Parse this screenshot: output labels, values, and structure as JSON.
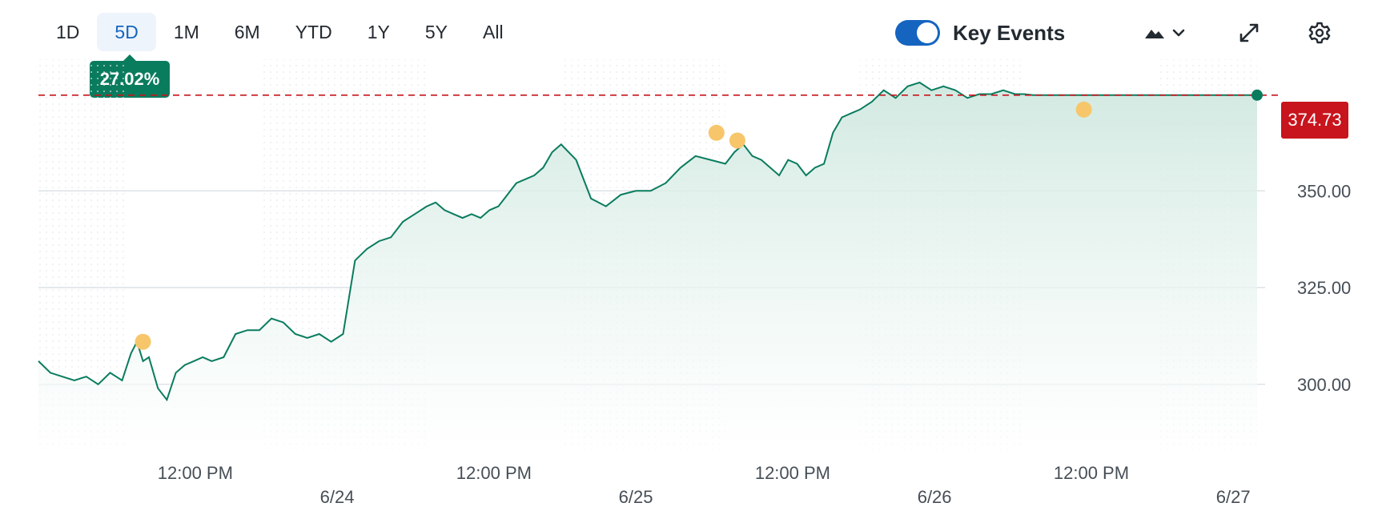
{
  "toolbar": {
    "ranges": [
      "1D",
      "5D",
      "1M",
      "6M",
      "YTD",
      "1Y",
      "5Y",
      "All"
    ],
    "active_range": "5D",
    "change_badge": "27.02%",
    "key_events_label": "Key Events",
    "key_events_on": true,
    "icons": [
      "mountain-chart-type-icon",
      "chevron-down-icon",
      "expand-icon",
      "gear-icon"
    ]
  },
  "colors": {
    "line": "#0a7c5e",
    "fill": "#d8ede6",
    "current_price": "#c8141c",
    "event_marker": "#f7c66a",
    "active_tab": "#1565c0"
  },
  "current_price_label": "374.73",
  "chart_data": {
    "type": "area",
    "title": "",
    "xlabel": "",
    "ylabel": "",
    "ylim": [
      283,
      384
    ],
    "y_ticks": [
      300,
      325,
      350
    ],
    "y_tick_labels": [
      "300.00",
      "325.00",
      "350.00"
    ],
    "x_time_labels": [
      "12:00 PM",
      "12:00 PM",
      "12:00 PM",
      "12:00 PM"
    ],
    "x_date_labels": [
      "6/24",
      "6/25",
      "6/26",
      "6/27"
    ],
    "x_range_days": [
      0,
      4.08
    ],
    "sessions": [
      {
        "start": 0.3,
        "end": 0.75
      },
      {
        "start": 1.3,
        "end": 1.75
      },
      {
        "start": 2.3,
        "end": 2.75
      },
      {
        "start": 3.3,
        "end": 3.75
      }
    ],
    "current_price": 374.73,
    "series": [
      {
        "x": [
          0.0,
          0.04,
          0.08,
          0.12,
          0.16,
          0.2,
          0.24,
          0.28,
          0.31,
          0.33,
          0.35,
          0.37,
          0.4,
          0.43,
          0.46,
          0.49,
          0.52,
          0.55,
          0.58,
          0.62,
          0.66,
          0.7,
          0.74,
          0.78,
          0.82,
          0.86,
          0.9,
          0.94,
          0.98,
          1.02,
          1.06,
          1.1,
          1.14,
          1.18,
          1.22,
          1.26,
          1.3,
          1.33,
          1.36,
          1.39,
          1.42,
          1.45,
          1.48,
          1.51,
          1.54,
          1.57,
          1.6,
          1.63,
          1.66,
          1.69,
          1.72,
          1.75,
          1.8,
          1.85,
          1.9,
          1.95,
          2.0,
          2.05,
          2.1,
          2.15,
          2.2,
          2.25,
          2.3,
          2.33,
          2.36,
          2.39,
          2.42,
          2.45,
          2.48,
          2.51,
          2.54,
          2.57,
          2.6,
          2.63,
          2.66,
          2.69,
          2.72,
          2.75,
          2.79,
          2.83,
          2.87,
          2.91,
          2.95,
          2.99,
          3.03,
          3.07,
          3.11,
          3.15,
          3.19,
          3.23,
          3.27,
          3.3,
          3.33,
          3.36,
          3.39,
          3.42,
          3.45,
          3.48,
          3.51,
          3.54,
          3.57,
          3.6,
          3.63,
          3.66,
          3.69,
          3.72,
          3.75,
          3.8,
          3.85,
          3.9,
          3.95,
          4.0,
          4.04,
          4.08
        ],
        "y": [
          306,
          303,
          302,
          301,
          302,
          300,
          303,
          301,
          308,
          311,
          306,
          307,
          299,
          296,
          303,
          305,
          306,
          307,
          306,
          307,
          313,
          314,
          314,
          317,
          316,
          313,
          312,
          313,
          311,
          313,
          332,
          335,
          337,
          338,
          342,
          344,
          346,
          347,
          345,
          344,
          343,
          344,
          343,
          345,
          346,
          349,
          352,
          353,
          354,
          356,
          360,
          362,
          358,
          348,
          346,
          349,
          350,
          350,
          352,
          356,
          359,
          358,
          357,
          360,
          362,
          359,
          358,
          356,
          354,
          358,
          357,
          354,
          356,
          357,
          365,
          369,
          370,
          371,
          373,
          376,
          374,
          377,
          378,
          376,
          377,
          376,
          374,
          375,
          375,
          376,
          375,
          375,
          374.73,
          374.73,
          374.73,
          374.73,
          374.73,
          374.73,
          374.73,
          374.73,
          374.73,
          374.73,
          374.73,
          374.73,
          374.73,
          374.73,
          374.73,
          374.73,
          374.73,
          374.73,
          374.73,
          374.73,
          374.73,
          374.73
        ]
      }
    ],
    "events": [
      {
        "x": 0.35,
        "y": 311
      },
      {
        "x": 2.27,
        "y": 365
      },
      {
        "x": 2.34,
        "y": 363
      },
      {
        "x": 3.5,
        "y": 371
      }
    ]
  }
}
